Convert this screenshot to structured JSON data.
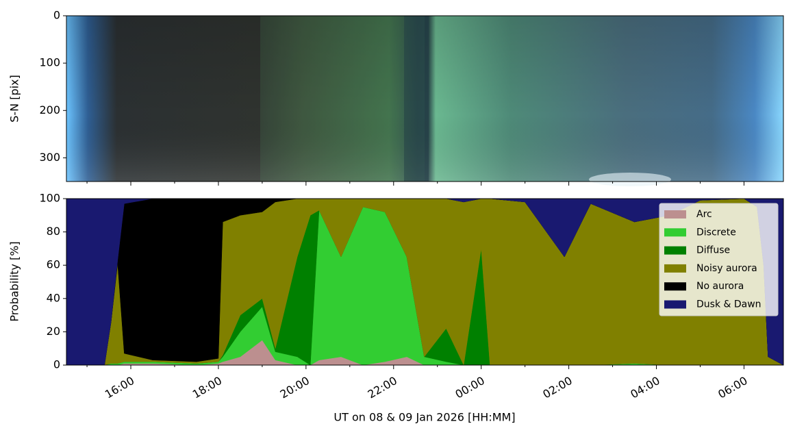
{
  "chart_data": [
    {
      "type": "image",
      "ylabel": "S-N [pix]",
      "ylim": [
        350,
        0
      ],
      "yticks": [
        0,
        100,
        200,
        300
      ]
    },
    {
      "type": "stacked_area",
      "xlabel": "UT on 08 & 09 Jan 2026 [HH:MM]",
      "ylabel": "Probability [%]",
      "xlim": [
        14.53,
        30.9
      ],
      "xticks": [
        {
          "value": 16,
          "label": "16:00"
        },
        {
          "value": 18,
          "label": "18:00"
        },
        {
          "value": 20,
          "label": "20:00"
        },
        {
          "value": 22,
          "label": "22:00"
        },
        {
          "value": 24,
          "label": "00:00"
        },
        {
          "value": 26,
          "label": "02:00"
        },
        {
          "value": 28,
          "label": "04:00"
        },
        {
          "value": 30,
          "label": "06:00"
        }
      ],
      "xminorticks": [
        15,
        17,
        19,
        21,
        23,
        25,
        27,
        29
      ],
      "ylim": [
        0,
        100
      ],
      "yticks": [
        0,
        20,
        40,
        60,
        80,
        100
      ],
      "legend": "upper right",
      "x": [
        14.53,
        15.4,
        15.55,
        15.7,
        15.85,
        16.5,
        17.5,
        18.0,
        18.1,
        18.5,
        19.0,
        19.3,
        19.8,
        20.1,
        20.3,
        20.8,
        21.3,
        21.8,
        22.3,
        22.7,
        23.2,
        23.6,
        24.0,
        24.2,
        25.0,
        25.9,
        26.5,
        27.5,
        28.3,
        29.0,
        30.0,
        30.3,
        30.45,
        30.55,
        30.9
      ],
      "series": [
        {
          "name": "Arc",
          "color": "#bc8f8f",
          "values": [
            0,
            0,
            0,
            0,
            1,
            1,
            0,
            1,
            2,
            5,
            15,
            3,
            0,
            0,
            3,
            5,
            0,
            2,
            5,
            0,
            0,
            0,
            0,
            0,
            0,
            0,
            0,
            0,
            0,
            0,
            0,
            0,
            0,
            0,
            0
          ]
        },
        {
          "name": "Discrete",
          "color": "#32cd32",
          "values": [
            0,
            0,
            1,
            1,
            1,
            1,
            1,
            1,
            3,
            15,
            20,
            5,
            5,
            0,
            90,
            60,
            95,
            90,
            60,
            5,
            2,
            0,
            0,
            0,
            0,
            0,
            0,
            1,
            0,
            0,
            0,
            0,
            0,
            0,
            0
          ]
        },
        {
          "name": "Diffuse",
          "color": "#008000",
          "values": [
            0,
            0,
            0,
            0,
            0,
            0,
            0,
            0,
            1,
            10,
            5,
            2,
            60,
            90,
            0,
            0,
            0,
            0,
            0,
            0,
            20,
            0,
            70,
            0,
            0,
            0,
            0,
            0,
            0,
            0,
            0,
            0,
            0,
            0,
            0
          ]
        },
        {
          "name": "Noisy aurora",
          "color": "#808000",
          "values": [
            0,
            0,
            25,
            60,
            5,
            1,
            1,
            2,
            80,
            60,
            52,
            88,
            35,
            10,
            7,
            35,
            5,
            8,
            35,
            95,
            78,
            98,
            30,
            100,
            98,
            65,
            97,
            85,
            90,
            99,
            100,
            95,
            60,
            5,
            0
          ]
        },
        {
          "name": "No aurora",
          "color": "#000000",
          "values": [
            0,
            0,
            0,
            2,
            90,
            97,
            98,
            96,
            14,
            10,
            8,
            2,
            0,
            0,
            0,
            0,
            0,
            0,
            0,
            0,
            0,
            0,
            0,
            0,
            0,
            0,
            0,
            0,
            0,
            0,
            0,
            0,
            0,
            0,
            0
          ]
        },
        {
          "name": "Dusk & Dawn",
          "color": "#191970",
          "values": [
            100,
            100,
            74,
            37,
            3,
            0,
            0,
            0,
            0,
            0,
            0,
            0,
            0,
            0,
            0,
            0,
            0,
            0,
            0,
            0,
            0,
            2,
            0,
            0,
            2,
            35,
            3,
            14,
            10,
            1,
            0,
            5,
            40,
            95,
            100
          ]
        }
      ]
    }
  ]
}
